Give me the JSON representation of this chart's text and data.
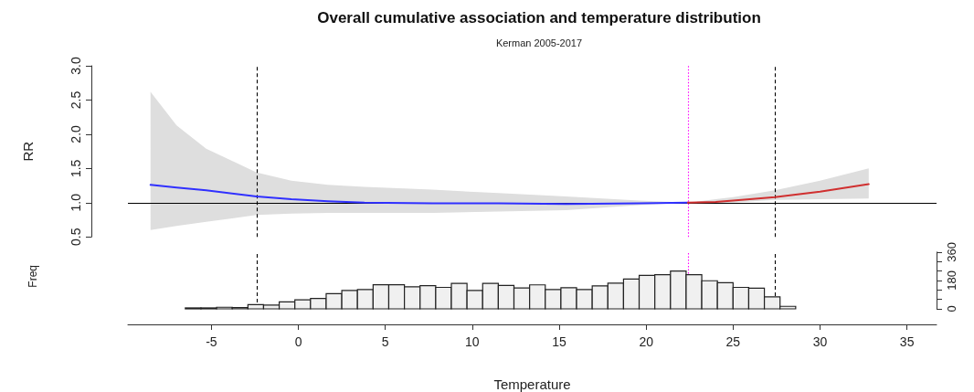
{
  "chart_data": [
    {
      "type": "line",
      "title": "Overall cumulative association and temperature distribution",
      "subtitle": "Kerman 2005-2017",
      "ylabel": "RR",
      "xlim": [
        -9.8,
        36.7
      ],
      "xticks": [
        -5,
        0,
        5,
        10,
        15,
        20,
        25,
        30,
        35
      ],
      "ylim": [
        0.5,
        3.0
      ],
      "yticks": [
        {
          "value": 0.5,
          "label": "0.5"
        },
        {
          "value": 1,
          "label": "1.0"
        },
        {
          "value": 1.5,
          "label": "1.5"
        },
        {
          "value": 2,
          "label": "2.0"
        },
        {
          "value": 2.5,
          "label": "2.5"
        },
        {
          "value": 3,
          "label": "3.0"
        }
      ],
      "tick_labels": "y",
      "grid": false,
      "marker": "none",
      "line_style": "solid",
      "series": [
        {
          "color": "#3030ff",
          "x": [
            -8.5,
            -7,
            -5.3,
            -2.4,
            -0.4,
            1.7,
            3.8,
            7.7,
            11.5,
            15.4,
            19.6,
            22.4
          ],
          "values": [
            1.26,
            1.22,
            1.18,
            1.09,
            1.05,
            1.02,
            1.0,
            0.99,
            0.99,
            0.98,
            0.99,
            1.0
          ],
          "upper": [
            2.62,
            2.13,
            1.79,
            1.44,
            1.32,
            1.26,
            1.23,
            1.19,
            1.14,
            1.09,
            1.03,
            1.0
          ],
          "lower": [
            0.6,
            0.66,
            0.72,
            0.82,
            0.84,
            0.85,
            0.85,
            0.85,
            0.87,
            0.89,
            0.965,
            1.0
          ]
        },
        {
          "color": "#d03030",
          "x": [
            22.4,
            24,
            25,
            27.4,
            30,
            32.8
          ],
          "values": [
            1.0,
            1.01,
            1.03,
            1.08,
            1.16,
            1.27
          ],
          "upper": [
            1.0,
            1.05,
            1.08,
            1.18,
            1.32,
            1.5
          ],
          "lower": [
            1.0,
            0.99,
            1.0,
            1.04,
            1.05,
            1.06
          ]
        }
      ],
      "ref_lines": [
        {
          "axis": "x",
          "value": -2.4,
          "color": "#000000",
          "line_style": "dashed"
        },
        {
          "axis": "x",
          "value": 22.4,
          "color": "#ff00ff",
          "line_style": "dotted"
        },
        {
          "axis": "x",
          "value": 27.4,
          "color": "#000000",
          "line_style": "dashed"
        },
        {
          "axis": "y",
          "value": 1,
          "color": "#000000",
          "line_style": "solid"
        }
      ]
    },
    {
      "type": "histogram",
      "xlabel": "Temperature",
      "ylabel": "Freq",
      "xlim": [
        -9.8,
        36.7
      ],
      "xticks": [
        -5,
        0,
        5,
        10,
        15,
        20,
        25,
        30,
        35
      ],
      "ylim": [
        0,
        360
      ],
      "yticks": [
        0,
        {
          "value": 60,
          "label": null
        },
        {
          "value": 120,
          "label": null
        },
        180,
        {
          "value": 240,
          "label": null
        },
        {
          "value": 300,
          "label": null
        },
        360
      ],
      "grid": false,
      "color": "#f0f0f0",
      "bins": [
        -6.5,
        -5.6,
        -4.7,
        -3.8,
        -2.9,
        -2,
        -1.1,
        -0.2,
        0.7,
        1.6,
        2.5,
        3.4,
        4.3,
        5.2,
        6.1,
        7,
        7.9,
        8.8,
        9.7,
        10.6,
        11.5,
        12.4,
        13.3,
        14.2,
        15.1,
        16,
        16.9,
        17.8,
        18.7,
        19.6,
        20.5,
        21.4,
        22.3,
        23.2,
        24.1,
        25,
        25.9,
        26.8,
        27.7,
        28.6
      ],
      "values": [
        6,
        6,
        10,
        8,
        27,
        24,
        44,
        57,
        66,
        96,
        117,
        122,
        153,
        153,
        140,
        147,
        136,
        161,
        117,
        161,
        148,
        133,
        152,
        122,
        134,
        122,
        145,
        163,
        189,
        212,
        216,
        240,
        216,
        178,
        166,
        136,
        131,
        76,
        16
      ],
      "ref_lines": [
        {
          "axis": "x",
          "value": -2.4,
          "color": "#000000",
          "line_style": "dashed"
        },
        {
          "axis": "x",
          "value": 22.4,
          "color": "#ff00ff",
          "line_style": "dotted"
        },
        {
          "axis": "x",
          "value": 27.4,
          "color": "#000000",
          "line_style": "dashed"
        }
      ]
    }
  ]
}
